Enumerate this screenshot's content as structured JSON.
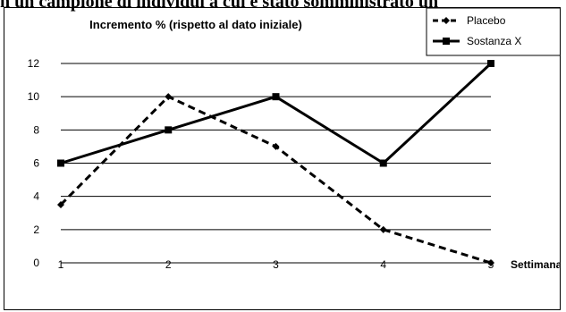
{
  "heading": "n un campione di individui a cui è stato somministrato un",
  "chart_data": {
    "type": "line",
    "title": "Incremento % (rispetto al dato iniziale)",
    "xlabel": "Settimana",
    "ylabel": "",
    "categories": [
      "1",
      "2",
      "3",
      "4",
      "5"
    ],
    "ylim": [
      0,
      12
    ],
    "yticks": [
      0,
      2,
      4,
      6,
      8,
      10,
      12
    ],
    "grid": true,
    "legend_position": "top-right",
    "series": [
      {
        "name": "Placebo",
        "values": [
          3.5,
          10,
          7,
          2,
          0
        ],
        "color": "#000000",
        "dashed": true,
        "marker": "diamond"
      },
      {
        "name": "Sostanza X",
        "values": [
          6,
          8,
          10,
          6,
          12
        ],
        "color": "#000000",
        "dashed": false,
        "marker": "square"
      }
    ]
  }
}
